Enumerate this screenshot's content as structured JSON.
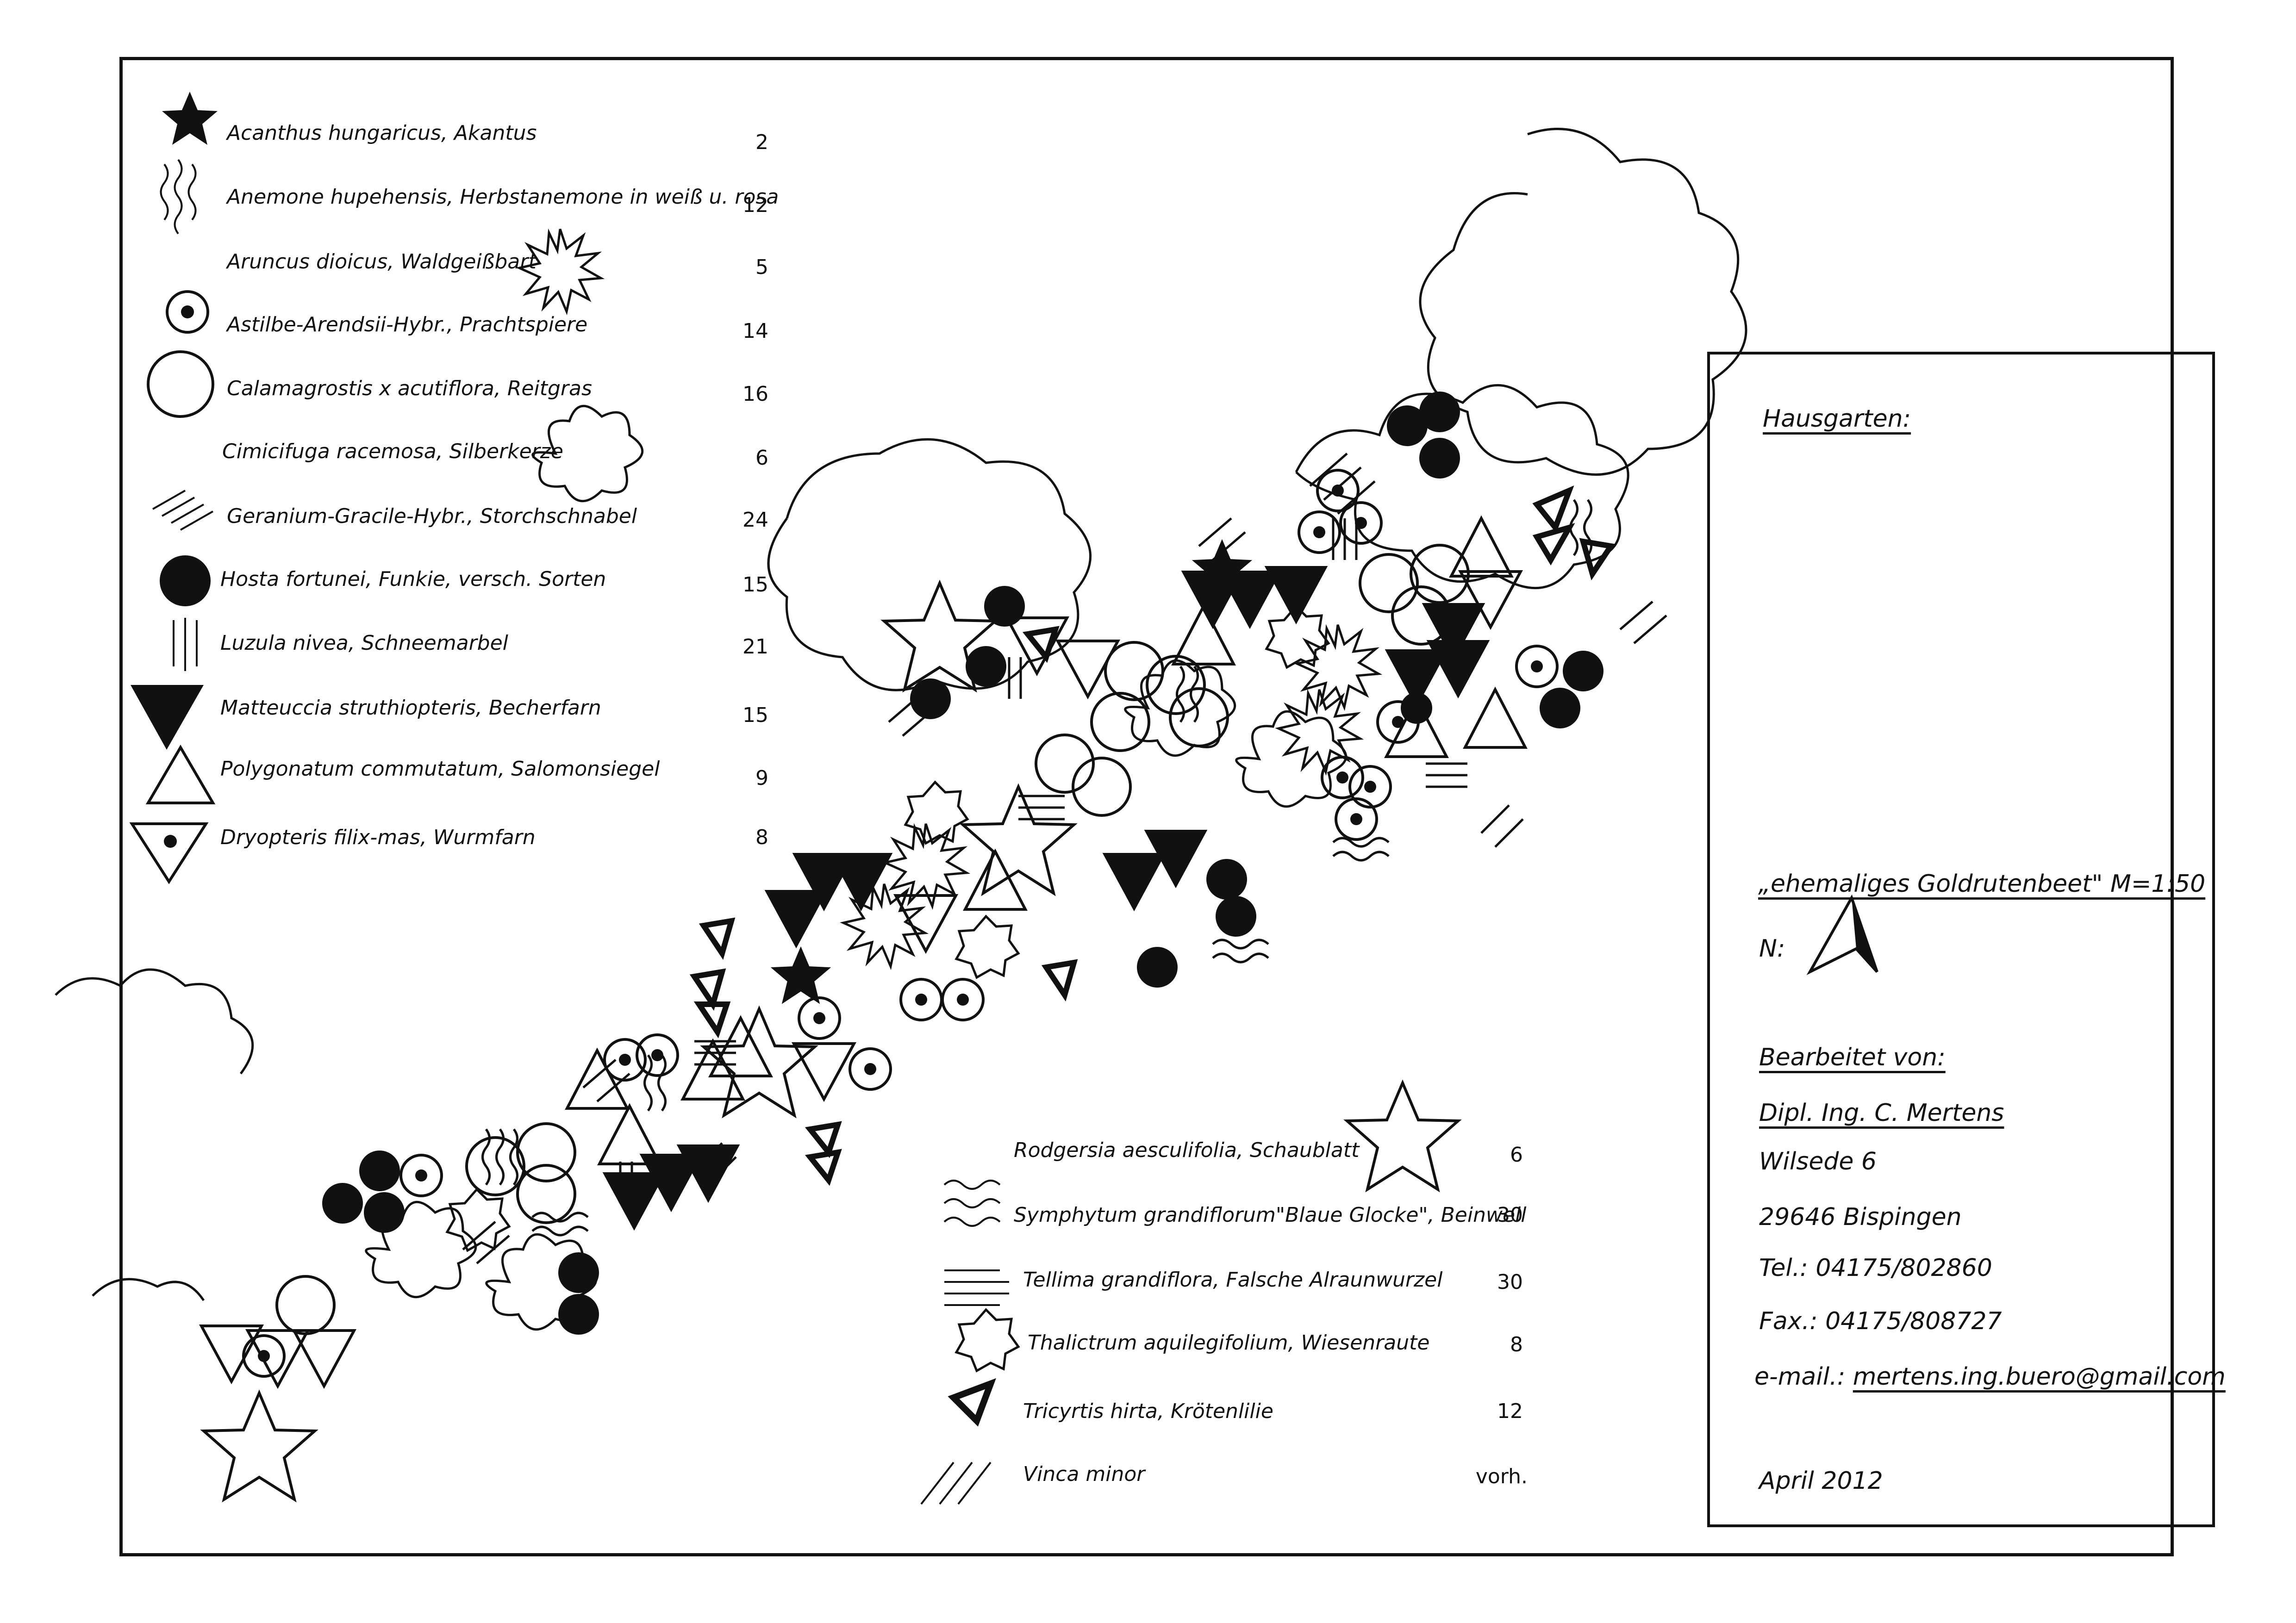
{
  "legend_top": [
    {
      "symbol": "filled-star",
      "label": "Acanthus hungaricus, Akantus",
      "count": "2"
    },
    {
      "symbol": "wavy-lines",
      "label": "Anemone hupehensis, Herbstanemone in weiß u. rosa",
      "count": "12"
    },
    {
      "symbol": "sun-burst",
      "label": "Aruncus dioicus, Waldgeißbart",
      "count": "5"
    },
    {
      "symbol": "dot-circle",
      "label": "Astilbe-Arendsii-Hybr., Prachtspiere",
      "count": "14"
    },
    {
      "symbol": "circle",
      "label": "Calamagrostis x acutiflora, Reitgras",
      "count": "16"
    },
    {
      "symbol": "flower-blob",
      "label": "Cimicifuga racemosa, Silberkerze",
      "count": "6"
    },
    {
      "symbol": "diagonal-hatch",
      "label": "Geranium-Gracile-Hybr., Storchschnabel",
      "count": "24"
    },
    {
      "symbol": "filled-circle",
      "label": "Hosta fortunei, Funkie, versch. Sorten",
      "count": "15"
    },
    {
      "symbol": "vertical-lines",
      "label": "Luzula nivea, Schneemarbel",
      "count": "21"
    },
    {
      "symbol": "filled-triangle",
      "label": "Matteuccia struthiopteris, Becherfarn",
      "count": "15"
    },
    {
      "symbol": "open-triangle",
      "label": "Polygonatum commutatum, Salomonsiegel",
      "count": "9"
    },
    {
      "symbol": "dot-triangle",
      "label": "Dryopteris filix-mas, Wurmfarn",
      "count": "8"
    }
  ],
  "legend_bottom": [
    {
      "symbol": "open-star",
      "label": "Rodgersia aesculifolia, Schaublatt",
      "count": "6"
    },
    {
      "symbol": "wave-rows",
      "label": "Symphytum grandiflorum\"Blaue Glocke\", Beinwell",
      "count": "30"
    },
    {
      "symbol": "horizontal-lines",
      "label": "Tellima grandiflora, Falsche Alraunwurzel",
      "count": "30"
    },
    {
      "symbol": "heptagon-star",
      "label": "Thalictrum aquilegifolium, Wiesenraute",
      "count": "8"
    },
    {
      "symbol": "bold-triangle",
      "label": "Tricyrtis hirta, Krötenlilie",
      "count": "12"
    },
    {
      "symbol": "slash-lines",
      "label": "Vinca minor",
      "count": "vorh."
    }
  ],
  "title_block": {
    "heading": "Hausgarten:",
    "project": "„ehemaliges Goldrutenbeet\" M=1:50",
    "north_label": "N:",
    "edited_by": "Bearbeitet von:",
    "name": "Dipl. Ing. C. Mertens",
    "street": "Wilsede 6",
    "city": "29646 Bispingen",
    "phone": "Tel.: 04175/802860",
    "fax": "Fax.: 04175/808727",
    "email_prefix": "e-mail.:",
    "email": "mertens.ing.buero@gmail.com",
    "date": "April 2012"
  },
  "colors": {
    "ink": "#111111",
    "paper": "#ffffff"
  }
}
